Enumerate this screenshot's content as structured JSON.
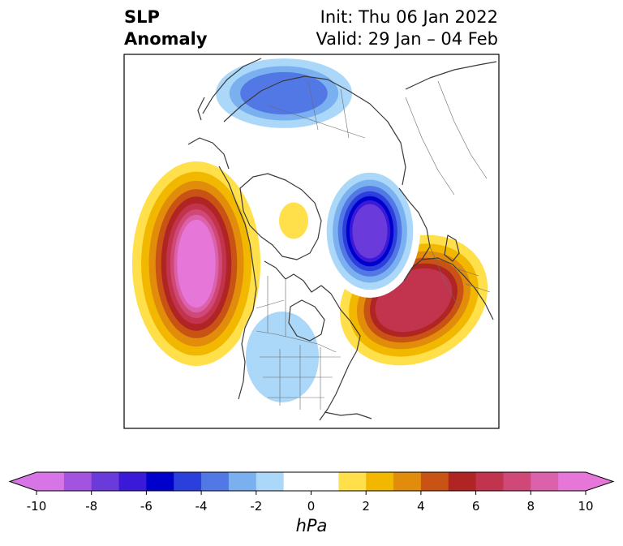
{
  "title": {
    "variable": "SLP",
    "field": "Anomaly",
    "init": "Init: Thu 06 Jan 2022",
    "valid": "Valid: 29 Jan – 04 Feb"
  },
  "colorbar": {
    "unit": "hPa",
    "min": -10,
    "max": 10,
    "step": 1,
    "extend": "both",
    "tick_labels": [
      "-10",
      "-8",
      "-6",
      "-4",
      "-2",
      "0",
      "2",
      "4",
      "6",
      "8",
      "10"
    ],
    "colors": [
      "#d875e6",
      "#a254e0",
      "#6b3ada",
      "#3a19d8",
      "#0000cc",
      "#2a3fdb",
      "#5278e6",
      "#7ab0f0",
      "#abd8f8",
      "#ffffff",
      "#ffffff",
      "#ffe04a",
      "#f2b800",
      "#e18c0a",
      "#c85314",
      "#b02424",
      "#c2344e",
      "#d04878",
      "#db62aa",
      "#e676d8"
    ],
    "under_color": "#d875e6",
    "over_color": "#e676d8"
  },
  "map": {
    "projection": "north-polar-stereographic",
    "features": [
      {
        "name": "ne-pacific-high",
        "type": "positive",
        "peak_hpa": 10
      },
      {
        "name": "north-atlantic-high",
        "type": "positive",
        "peak_hpa": 7
      },
      {
        "name": "barents-kara-low",
        "type": "negative",
        "peak_hpa": -8
      },
      {
        "name": "siberia-low",
        "type": "negative",
        "peak_hpa": -4
      },
      {
        "name": "central-us-low",
        "type": "negative",
        "peak_hpa": -2
      },
      {
        "name": "arctic-ocean-high",
        "type": "positive",
        "peak_hpa": 2
      }
    ]
  }
}
